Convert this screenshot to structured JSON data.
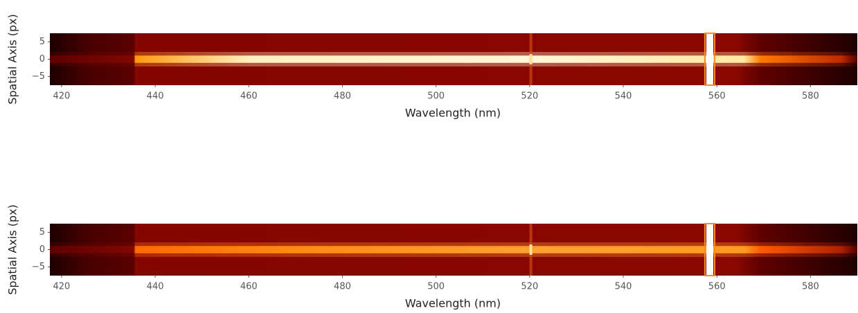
{
  "chart_data": [
    {
      "type": "image",
      "xlabel": "Wavelength (nm)",
      "ylabel": "Spatial Axis (px)",
      "xlim": [
        417.5,
        590
      ],
      "ylim": [
        -7.5,
        7.5
      ],
      "xticks": [
        420,
        440,
        460,
        480,
        500,
        520,
        540,
        560,
        580
      ],
      "yticks": [
        {
          "value": -5,
          "label": "−5"
        },
        0,
        5
      ]
    },
    {
      "type": "image",
      "xlabel": "Wavelength (nm)",
      "ylabel": "Spatial Axis (px)",
      "xlim": [
        417.5,
        590
      ],
      "ylim": [
        -7.5,
        7.5
      ],
      "xticks": [
        420,
        440,
        460,
        480,
        500,
        520,
        540,
        560,
        580
      ],
      "yticks": [
        {
          "value": -5,
          "label": "−5"
        },
        0,
        5
      ]
    }
  ]
}
